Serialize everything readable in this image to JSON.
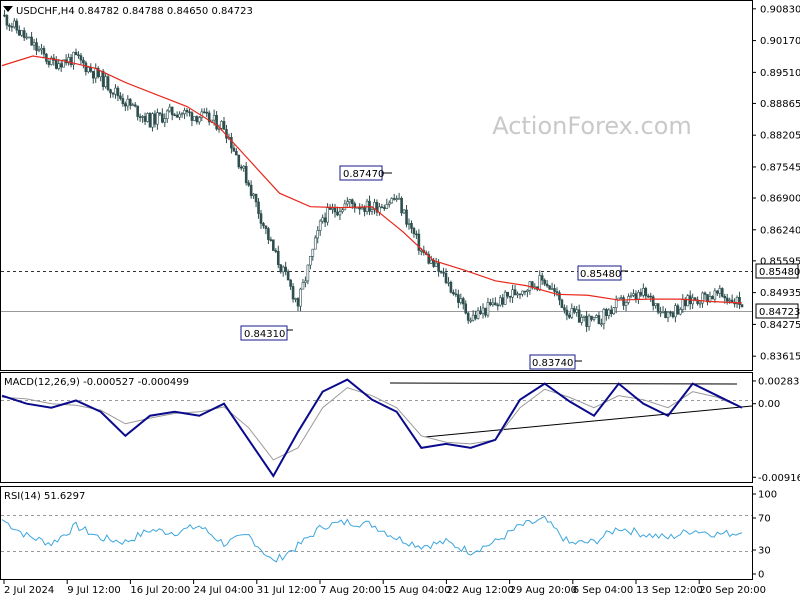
{
  "chart_data": [
    {
      "type": "candlestick",
      "header": "USDCHF,H4  0.84782 0.84788 0.84650 0.84723",
      "watermark": "ActionForex.com",
      "ylim": [
        0.8339,
        0.9093
      ],
      "y_ticks": [
        "0.90830",
        "0.90170",
        "0.89510",
        "0.88865",
        "0.88205",
        "0.87545",
        "0.86900",
        "0.86240",
        "0.85595",
        "0.84935",
        "0.84275",
        "0.83615"
      ],
      "price_tags": [
        {
          "value": 0.8548,
          "text": "0.85480",
          "style": "dashed"
        },
        {
          "value": 0.84723,
          "text": "0.84723",
          "style": "solid"
        }
      ],
      "annotations": [
        {
          "text": "0.87470",
          "x": "8 Aug 2024 20:00",
          "y": 0.8747
        },
        {
          "text": "0.84310",
          "x": "2 Aug 2024 08:00",
          "y": 0.8431
        },
        {
          "text": "0.85480",
          "x": "6 Sep 2024 20:00",
          "y": 0.8548
        },
        {
          "text": "0.83740",
          "x": "6 Sep 2024 00:00",
          "y": 0.8374
        }
      ],
      "series": [
        {
          "name": "close",
          "x": [
            "1 Jul 2024",
            "3 Jul 2024",
            "5 Jul 2024",
            "9 Jul 2024",
            "11 Jul 2024",
            "15 Jul 2024",
            "17 Jul 2024",
            "19 Jul 2024",
            "23 Jul 2024",
            "25 Jul 2024",
            "29 Jul 2024",
            "31 Jul 2024",
            "2 Aug 2024",
            "6 Aug 2024",
            "8 Aug 2024",
            "12 Aug 2024",
            "14 Aug 2024",
            "16 Aug 2024",
            "20 Aug 2024",
            "22 Aug 2024",
            "26 Aug 2024",
            "28 Aug 2024",
            "30 Aug 2024",
            "3 Sep 2024",
            "5 Sep 2024",
            "9 Sep 2024",
            "11 Sep 2024",
            "13 Sep 2024",
            "17 Sep 2024",
            "19 Sep 2024",
            "23 Sep 2024"
          ],
          "values": [
            0.907,
            0.902,
            0.897,
            0.898,
            0.894,
            0.889,
            0.885,
            0.887,
            0.886,
            0.884,
            0.872,
            0.858,
            0.847,
            0.865,
            0.868,
            0.867,
            0.869,
            0.858,
            0.852,
            0.844,
            0.847,
            0.85,
            0.852,
            0.845,
            0.843,
            0.847,
            0.849,
            0.845,
            0.848,
            0.849,
            0.8472
          ]
        },
        {
          "name": "moving average",
          "values": [
            0.8965,
            0.8985,
            0.8975,
            0.896,
            0.893,
            0.8905,
            0.888,
            0.884,
            0.877,
            0.87,
            0.8672,
            0.867,
            0.8672,
            0.862,
            0.856,
            0.854,
            0.8518,
            0.8508,
            0.849,
            0.8488,
            0.8478,
            0.848,
            0.848,
            0.8475,
            0.8472
          ]
        }
      ]
    },
    {
      "type": "line",
      "header": "MACD(12,26,9) -0.000527 -0.000499",
      "ylim": [
        -0.0095,
        0.0032
      ],
      "y_ticks": [
        "0.002835",
        "0.00",
        "-0.009161"
      ],
      "series": [
        {
          "name": "MACD",
          "values": [
            0.001,
            0.0,
            -0.0005,
            0.0004,
            -0.001,
            -0.004,
            -0.0015,
            -0.001,
            -0.0015,
            0.0,
            -0.0045,
            -0.009,
            -0.0035,
            0.0015,
            0.003,
            0.0005,
            -0.001,
            -0.0055,
            -0.005,
            -0.0055,
            -0.0045,
            0.0005,
            0.0025,
            0.0003,
            -0.0015,
            0.0025,
            0.0,
            -0.0015,
            0.0025,
            0.001,
            -0.0005
          ]
        },
        {
          "name": "signal",
          "values": [
            0.0008,
            0.0006,
            0.0,
            -0.0002,
            -0.0008,
            -0.0025,
            -0.0018,
            -0.0012,
            -0.001,
            -0.0004,
            -0.003,
            -0.007,
            -0.0055,
            -0.0005,
            0.002,
            0.001,
            -0.0005,
            -0.004,
            -0.0048,
            -0.005,
            -0.0045,
            -0.0005,
            0.0018,
            0.0008,
            -0.0005,
            0.001,
            0.0005,
            -0.0005,
            0.0015,
            0.0008,
            -0.0005
          ]
        }
      ]
    },
    {
      "type": "line",
      "header": "RSI(14) 51.6297",
      "ylim": [
        0,
        100
      ],
      "y_ticks": [
        "100",
        "70",
        "30",
        "0"
      ],
      "levels": [
        70,
        30
      ],
      "series": [
        {
          "name": "RSI",
          "values": [
            68,
            48,
            38,
            60,
            45,
            40,
            55,
            52,
            60,
            38,
            48,
            15,
            35,
            60,
            65,
            62,
            45,
            35,
            40,
            28,
            40,
            60,
            68,
            38,
            40,
            58,
            50,
            45,
            55,
            50,
            51.6
          ]
        }
      ]
    }
  ],
  "x_axis": {
    "tick_labels": [
      "2 Jul 2024",
      "9 Jul 12:00",
      "16 Jul 20:00",
      "24 Jul 04:00",
      "31 Jul 12:00",
      "7 Aug 20:00",
      "15 Aug 04:00",
      "22 Aug 12:00",
      "29 Aug 20:00",
      "6 Sep 04:00",
      "13 Sep 12:00",
      "20 Sep 20:00"
    ]
  },
  "colors": {
    "candles": "#2f4f4f",
    "moving_average": "#e8271b",
    "macd": "#0a0a8c",
    "signal": "#9a9a9a",
    "rsi": "#3da6dc",
    "watermark": "#c9c9c9",
    "annotation_border": "#1a1a8a"
  }
}
